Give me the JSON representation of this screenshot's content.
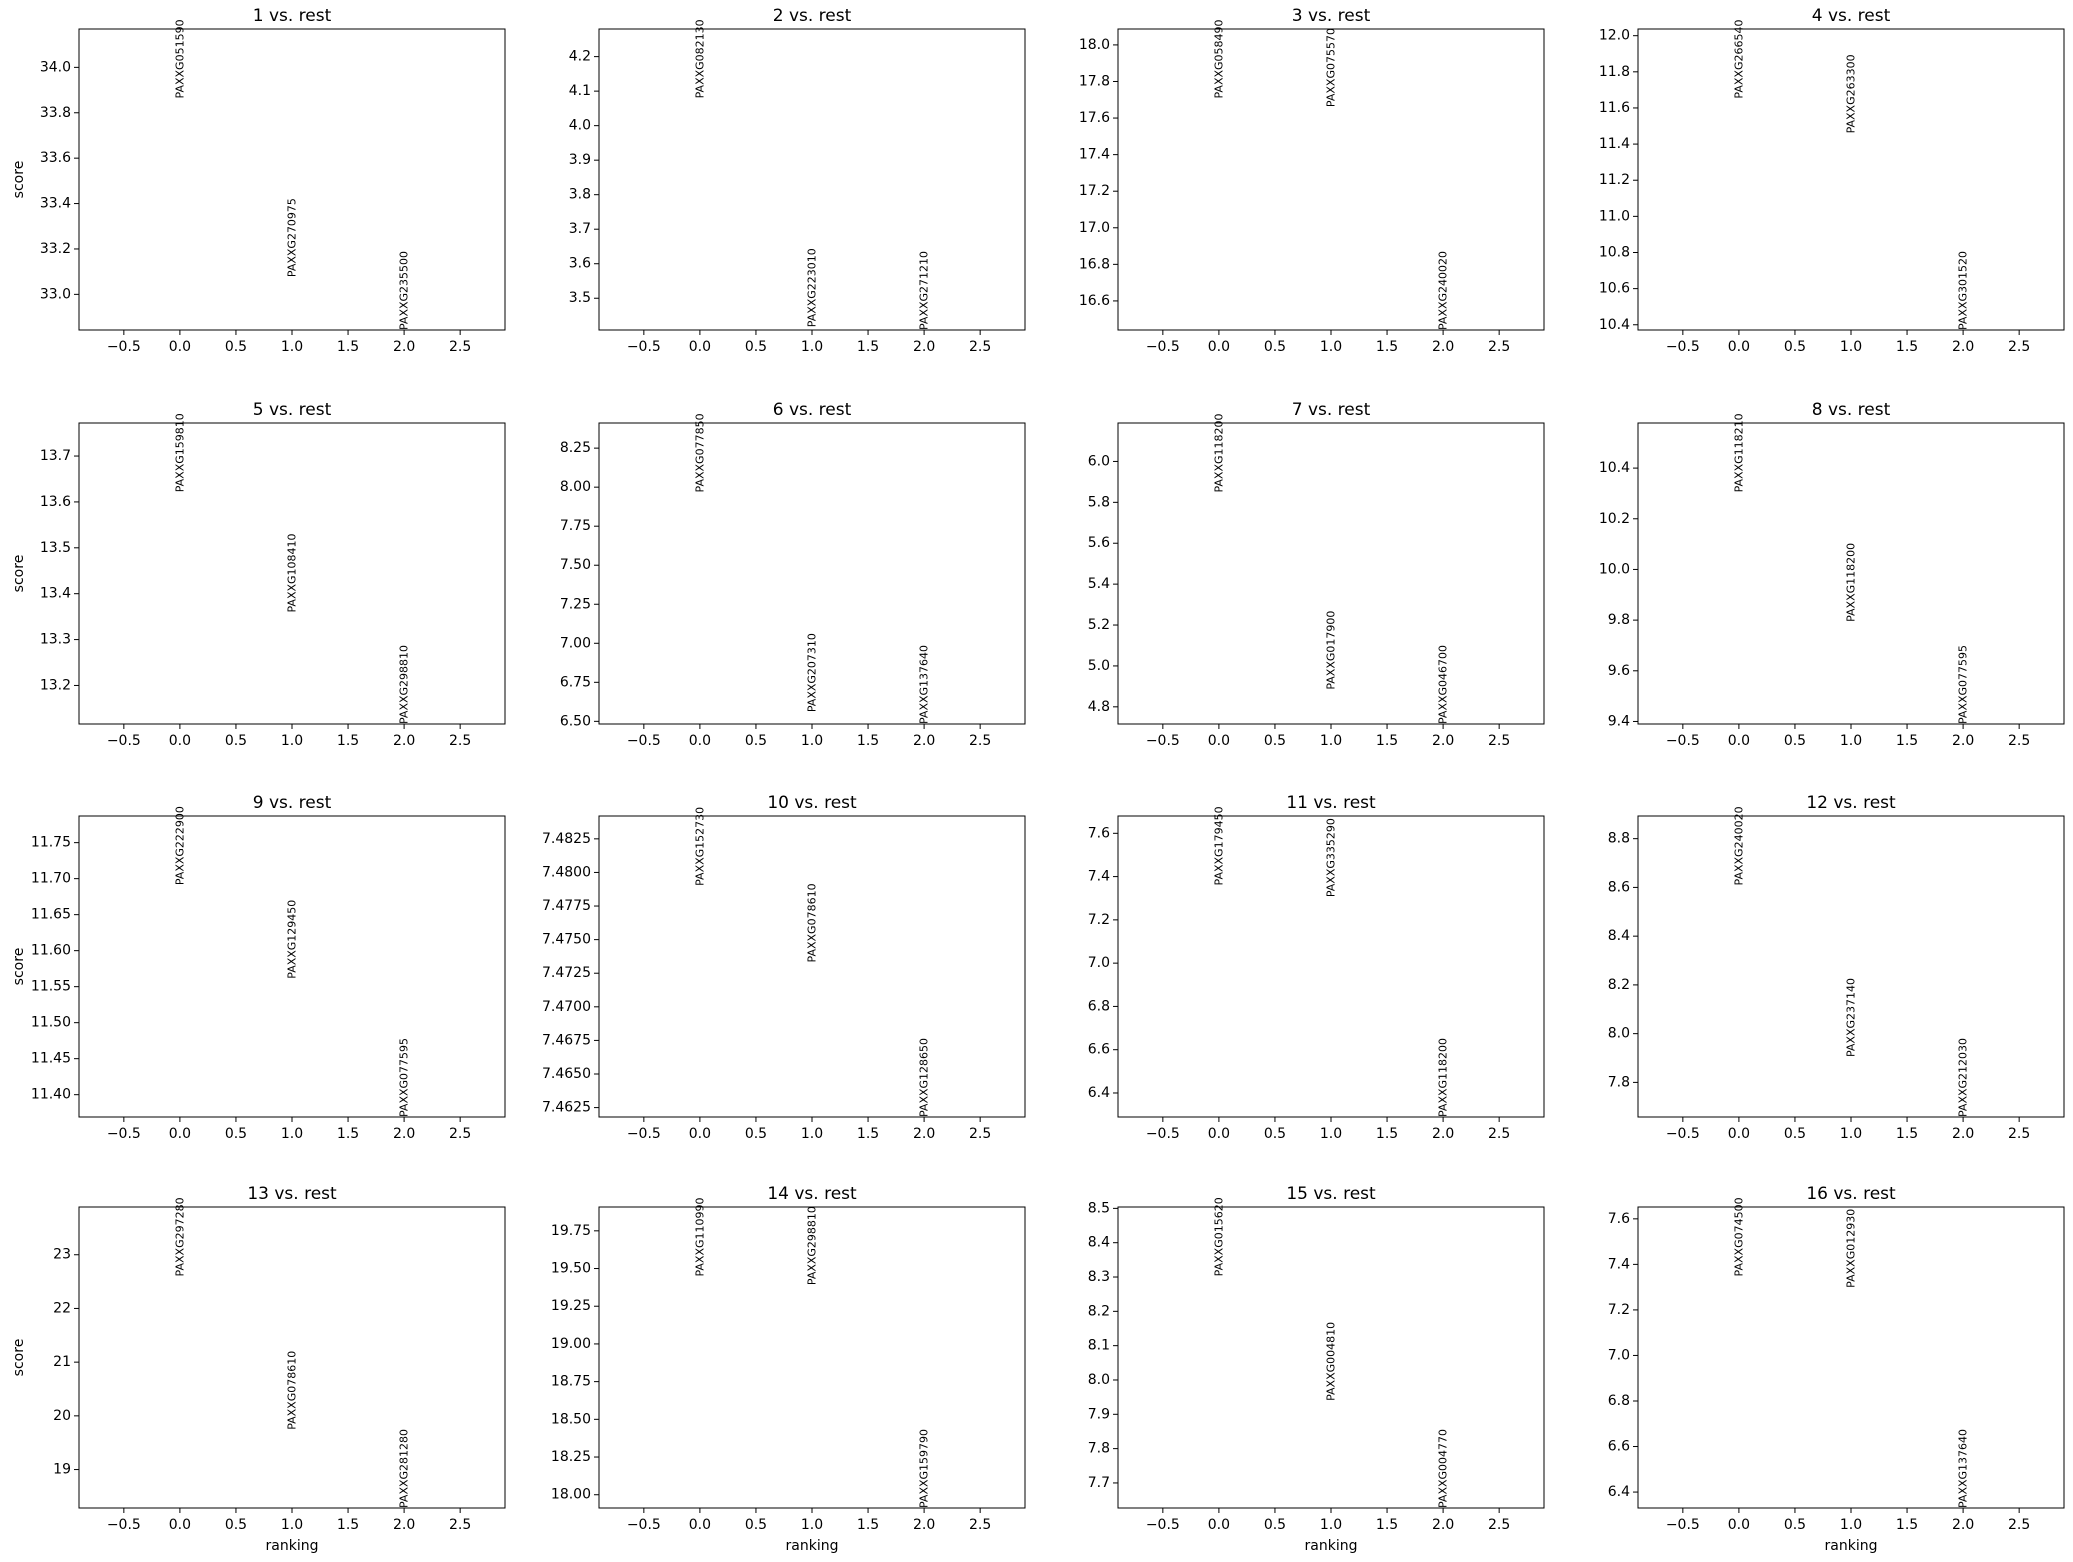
{
  "chart_data": [
    {
      "type": "text",
      "title": "1 vs. rest",
      "x": [
        0,
        1,
        2
      ],
      "values": [
        33.863,
        33.076,
        32.843
      ],
      "labels": [
        "PAXXG051590",
        "PAXXG270975",
        "PAXXG235500"
      ],
      "xlim": [
        -0.9,
        2.9
      ],
      "ylim": [
        32.843,
        34.169
      ],
      "xticks": [
        {
          "value": -0.5,
          "label": "−0.5"
        },
        {
          "value": 0,
          "label": "0.0"
        },
        0.5,
        {
          "value": 1,
          "label": "1.0"
        },
        1.5,
        {
          "value": 2,
          "label": "2.0"
        },
        2.5
      ],
      "yticks": [
        {
          "value": 33,
          "label": "33.0"
        },
        33.2,
        33.4,
        33.6,
        33.8,
        {
          "value": 34,
          "label": "34.0"
        }
      ],
      "ylabel": "score"
    },
    {
      "type": "text",
      "title": "2 vs. rest",
      "x": [
        0,
        1,
        2
      ],
      "values": [
        4.079,
        3.416,
        3.408
      ],
      "labels": [
        "PAXXG082130",
        "PAXXG223010",
        "PAXXG271210"
      ],
      "xlim": [
        -0.9,
        2.9
      ],
      "ylim": [
        3.408,
        4.28
      ],
      "xticks": [
        {
          "value": -0.5,
          "label": "−0.5"
        },
        {
          "value": 0,
          "label": "0.0"
        },
        0.5,
        {
          "value": 1,
          "label": "1.0"
        },
        1.5,
        {
          "value": 2,
          "label": "2.0"
        },
        2.5
      ],
      "yticks": [
        3.5,
        3.6,
        3.7,
        3.8,
        3.9,
        {
          "value": 4,
          "label": "4.0"
        },
        4.1,
        4.2
      ]
    },
    {
      "type": "text",
      "title": "3 vs. rest",
      "x": [
        0,
        1,
        2
      ],
      "values": [
        17.707,
        17.66,
        16.441
      ],
      "labels": [
        "PAXXG058490",
        "PAXXG075570",
        "PAXXG240020"
      ],
      "xlim": [
        -0.9,
        2.9
      ],
      "ylim": [
        16.441,
        18.087
      ],
      "xticks": [
        {
          "value": -0.5,
          "label": "−0.5"
        },
        {
          "value": 0,
          "label": "0.0"
        },
        0.5,
        {
          "value": 1,
          "label": "1.0"
        },
        1.5,
        {
          "value": 2,
          "label": "2.0"
        },
        2.5
      ],
      "yticks": [
        16.6,
        16.8,
        {
          "value": 17,
          "label": "17.0"
        },
        17.2,
        17.4,
        17.6,
        17.8,
        {
          "value": 18,
          "label": "18.0"
        }
      ]
    },
    {
      "type": "text",
      "title": "4 vs. rest",
      "x": [
        0,
        1,
        2
      ],
      "values": [
        11.652,
        11.459,
        10.371
      ],
      "labels": [
        "PAXXG266540",
        "PAXXG263300",
        "PAXXG301520"
      ],
      "xlim": [
        -0.9,
        2.9
      ],
      "ylim": [
        10.371,
        12.037
      ],
      "xticks": [
        {
          "value": -0.5,
          "label": "−0.5"
        },
        {
          "value": 0,
          "label": "0.0"
        },
        0.5,
        {
          "value": 1,
          "label": "1.0"
        },
        1.5,
        {
          "value": 2,
          "label": "2.0"
        },
        2.5
      ],
      "yticks": [
        10.4,
        10.6,
        10.8,
        {
          "value": 11,
          "label": "11.0"
        },
        11.2,
        11.4,
        11.6,
        11.8,
        {
          "value": 12,
          "label": "12.0"
        }
      ]
    },
    {
      "type": "text",
      "title": "5 vs. rest",
      "x": [
        0,
        1,
        2
      ],
      "values": [
        13.621,
        13.359,
        13.116
      ],
      "labels": [
        "PAXXG159810",
        "PAXXG108410",
        "PAXXG298810"
      ],
      "xlim": [
        -0.9,
        2.9
      ],
      "ylim": [
        13.116,
        13.772
      ],
      "xticks": [
        {
          "value": -0.5,
          "label": "−0.5"
        },
        {
          "value": 0,
          "label": "0.0"
        },
        0.5,
        {
          "value": 1,
          "label": "1.0"
        },
        1.5,
        {
          "value": 2,
          "label": "2.0"
        },
        2.5
      ],
      "yticks": [
        13.2,
        13.3,
        13.4,
        13.5,
        13.6,
        13.7
      ],
      "ylabel": "score"
    },
    {
      "type": "text",
      "title": "6 vs. rest",
      "x": [
        0,
        1,
        2
      ],
      "values": [
        7.966,
        6.559,
        6.483
      ],
      "labels": [
        "PAXXG077850",
        "PAXXG207310",
        "PAXXG137640"
      ],
      "xlim": [
        -0.9,
        2.9
      ],
      "ylim": [
        6.483,
        8.411
      ],
      "xticks": [
        {
          "value": -0.5,
          "label": "−0.5"
        },
        {
          "value": 0,
          "label": "0.0"
        },
        0.5,
        {
          "value": 1,
          "label": "1.0"
        },
        1.5,
        {
          "value": 2,
          "label": "2.0"
        },
        2.5
      ],
      "yticks": [
        {
          "value": 6.5,
          "label": "6.50"
        },
        6.75,
        {
          "value": 7,
          "label": "7.00"
        },
        7.25,
        {
          "value": 7.5,
          "label": "7.50"
        },
        7.75,
        {
          "value": 8,
          "label": "8.00"
        },
        8.25
      ]
    },
    {
      "type": "text",
      "title": "7 vs. rest",
      "x": [
        0,
        1,
        2
      ],
      "values": [
        5.848,
        4.884,
        4.716
      ],
      "labels": [
        "PAXXG118200",
        "PAXXG017900",
        "PAXXG046700"
      ],
      "xlim": [
        -0.9,
        2.9
      ],
      "ylim": [
        4.716,
        6.188
      ],
      "xticks": [
        {
          "value": -0.5,
          "label": "−0.5"
        },
        {
          "value": 0,
          "label": "0.0"
        },
        0.5,
        {
          "value": 1,
          "label": "1.0"
        },
        1.5,
        {
          "value": 2,
          "label": "2.0"
        },
        2.5
      ],
      "yticks": [
        4.8,
        {
          "value": 5,
          "label": "5.0"
        },
        5.2,
        5.4,
        5.6,
        5.8,
        {
          "value": 6,
          "label": "6.0"
        }
      ]
    },
    {
      "type": "text",
      "title": "8 vs. rest",
      "x": [
        0,
        1,
        2
      ],
      "values": [
        10.304,
        9.793,
        9.39
      ],
      "labels": [
        "PAXXG118210",
        "PAXXG118200",
        "PAXXG077595"
      ],
      "xlim": [
        -0.9,
        2.9
      ],
      "ylim": [
        9.39,
        10.578
      ],
      "xticks": [
        {
          "value": -0.5,
          "label": "−0.5"
        },
        {
          "value": 0,
          "label": "0.0"
        },
        0.5,
        {
          "value": 1,
          "label": "1.0"
        },
        1.5,
        {
          "value": 2,
          "label": "2.0"
        },
        2.5
      ],
      "yticks": [
        9.4,
        9.6,
        9.8,
        {
          "value": 10,
          "label": "10.0"
        },
        10.2,
        10.4
      ]
    },
    {
      "type": "text",
      "title": "9 vs. rest",
      "x": [
        0,
        1,
        2
      ],
      "values": [
        11.691,
        11.561,
        11.369
      ],
      "labels": [
        "PAXXG222900",
        "PAXXG129450",
        "PAXXG077595"
      ],
      "xlim": [
        -0.9,
        2.9
      ],
      "ylim": [
        11.369,
        11.787
      ],
      "xticks": [
        {
          "value": -0.5,
          "label": "−0.5"
        },
        {
          "value": 0,
          "label": "0.0"
        },
        0.5,
        {
          "value": 1,
          "label": "1.0"
        },
        1.5,
        {
          "value": 2,
          "label": "2.0"
        },
        2.5
      ],
      "yticks": [
        {
          "value": 11.4,
          "label": "11.40"
        },
        11.45,
        {
          "value": 11.5,
          "label": "11.50"
        },
        11.55,
        {
          "value": 11.6,
          "label": "11.60"
        },
        11.65,
        {
          "value": 11.7,
          "label": "11.70"
        },
        11.75
      ],
      "ylabel": "score"
    },
    {
      "type": "text",
      "title": "10 vs. rest",
      "x": [
        0,
        1,
        2
      ],
      "values": [
        7.479,
        7.4733,
        7.4618
      ],
      "labels": [
        "PAXXG152730",
        "PAXXG078610",
        "PAXXG128650"
      ],
      "xlim": [
        -0.9,
        2.9
      ],
      "ylim": [
        7.4618,
        7.4842
      ],
      "xticks": [
        {
          "value": -0.5,
          "label": "−0.5"
        },
        {
          "value": 0,
          "label": "0.0"
        },
        0.5,
        {
          "value": 1,
          "label": "1.0"
        },
        1.5,
        {
          "value": 2,
          "label": "2.0"
        },
        2.5
      ],
      "yticks": [
        7.4625,
        {
          "value": 7.465,
          "label": "7.4650"
        },
        7.4675,
        {
          "value": 7.47,
          "label": "7.4700"
        },
        7.4725,
        {
          "value": 7.475,
          "label": "7.4750"
        },
        7.4775,
        {
          "value": 7.48,
          "label": "7.4800"
        },
        7.4825
      ]
    },
    {
      "type": "text",
      "title": "11 vs. rest",
      "x": [
        0,
        1,
        2
      ],
      "values": [
        7.359,
        7.305,
        6.289
      ],
      "labels": [
        "PAXXG179450",
        "PAXXG335290",
        "PAXXG118200"
      ],
      "xlim": [
        -0.9,
        2.9
      ],
      "ylim": [
        6.289,
        7.68
      ],
      "xticks": [
        {
          "value": -0.5,
          "label": "−0.5"
        },
        {
          "value": 0,
          "label": "0.0"
        },
        0.5,
        {
          "value": 1,
          "label": "1.0"
        },
        1.5,
        {
          "value": 2,
          "label": "2.0"
        },
        2.5
      ],
      "yticks": [
        6.4,
        6.6,
        6.8,
        {
          "value": 7,
          "label": "7.0"
        },
        7.2,
        7.4,
        7.6
      ]
    },
    {
      "type": "text",
      "title": "12 vs. rest",
      "x": [
        0,
        1,
        2
      ],
      "values": [
        8.608,
        7.904,
        7.658
      ],
      "labels": [
        "PAXXG240020",
        "PAXXG237140",
        "PAXXG212030"
      ],
      "xlim": [
        -0.9,
        2.9
      ],
      "ylim": [
        7.658,
        8.893
      ],
      "xticks": [
        {
          "value": -0.5,
          "label": "−0.5"
        },
        {
          "value": 0,
          "label": "0.0"
        },
        0.5,
        {
          "value": 1,
          "label": "1.0"
        },
        1.5,
        {
          "value": 2,
          "label": "2.0"
        },
        2.5
      ],
      "yticks": [
        7.8,
        {
          "value": 8,
          "label": "8.0"
        },
        8.2,
        8.4,
        8.6,
        8.8
      ]
    },
    {
      "type": "text",
      "title": "13 vs. rest",
      "x": [
        0,
        1,
        2
      ],
      "values": [
        22.596,
        19.74,
        18.284
      ],
      "labels": [
        "PAXXG297280",
        "PAXXG078610",
        "PAXXG281280"
      ],
      "xlim": [
        -0.9,
        2.9
      ],
      "ylim": [
        18.284,
        23.889
      ],
      "xticks": [
        {
          "value": -0.5,
          "label": "−0.5"
        },
        {
          "value": 0,
          "label": "0.0"
        },
        0.5,
        {
          "value": 1,
          "label": "1.0"
        },
        1.5,
        {
          "value": 2,
          "label": "2.0"
        },
        2.5
      ],
      "yticks": [
        19,
        20,
        21,
        22,
        23
      ],
      "ylabel": "score",
      "xlabel": "ranking"
    },
    {
      "type": "text",
      "title": "14 vs. rest",
      "x": [
        0,
        1,
        2
      ],
      "values": [
        19.447,
        19.39,
        17.912
      ],
      "labels": [
        "PAXXG110990",
        "PAXXG298810",
        "PAXXG159790"
      ],
      "xlim": [
        -0.9,
        2.9
      ],
      "ylim": [
        17.912,
        19.908
      ],
      "xticks": [
        {
          "value": -0.5,
          "label": "−0.5"
        },
        {
          "value": 0,
          "label": "0.0"
        },
        0.5,
        {
          "value": 1,
          "label": "1.0"
        },
        1.5,
        {
          "value": 2,
          "label": "2.0"
        },
        2.5
      ],
      "yticks": [
        {
          "value": 18,
          "label": "18.00"
        },
        18.25,
        {
          "value": 18.5,
          "label": "18.50"
        },
        18.75,
        {
          "value": 19,
          "label": "19.00"
        },
        19.25,
        {
          "value": 19.5,
          "label": "19.50"
        },
        19.75
      ],
      "xlabel": "ranking"
    },
    {
      "type": "text",
      "title": "15 vs. rest",
      "x": [
        0,
        1,
        2
      ],
      "values": [
        8.302,
        7.939,
        7.627
      ],
      "labels": [
        "PAXXG015620",
        "PAXXG004810",
        "PAXXG004770"
      ],
      "xlim": [
        -0.9,
        2.9
      ],
      "ylim": [
        7.627,
        8.504
      ],
      "xticks": [
        {
          "value": -0.5,
          "label": "−0.5"
        },
        {
          "value": 0,
          "label": "0.0"
        },
        0.5,
        {
          "value": 1,
          "label": "1.0"
        },
        1.5,
        {
          "value": 2,
          "label": "2.0"
        },
        2.5
      ],
      "yticks": [
        7.7,
        7.8,
        7.9,
        {
          "value": 8,
          "label": "8.0"
        },
        8.1,
        8.2,
        8.3,
        8.4,
        8.5
      ],
      "xlabel": "ranking"
    },
    {
      "type": "text",
      "title": "16 vs. rest",
      "x": [
        0,
        1,
        2
      ],
      "values": [
        7.347,
        7.297,
        6.33
      ],
      "labels": [
        "PAXXG074500",
        "PAXXG012930",
        "PAXXG137640"
      ],
      "xlim": [
        -0.9,
        2.9
      ],
      "ylim": [
        6.33,
        7.652
      ],
      "xticks": [
        {
          "value": -0.5,
          "label": "−0.5"
        },
        {
          "value": 0,
          "label": "0.0"
        },
        0.5,
        {
          "value": 1,
          "label": "1.0"
        },
        1.5,
        {
          "value": 2,
          "label": "2.0"
        },
        2.5
      ],
      "yticks": [
        6.4,
        6.6,
        6.8,
        {
          "value": 7,
          "label": "7.0"
        },
        7.2,
        7.4,
        7.6
      ],
      "xlabel": "ranking"
    }
  ]
}
